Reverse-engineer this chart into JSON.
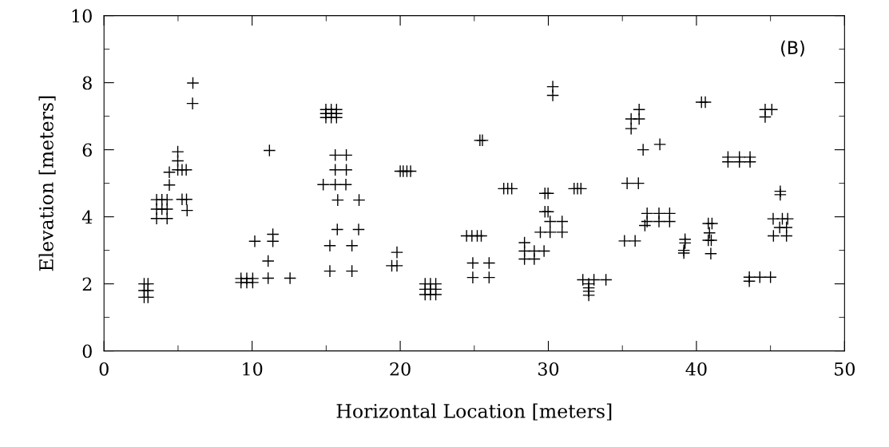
{
  "chart_data": {
    "type": "scatter",
    "xlabel": "Horizontal Location [meters]",
    "ylabel": "Elevation [meters]",
    "annotations": [
      "(B)"
    ],
    "marker": "cross",
    "grid": false,
    "legend": false,
    "xlim": [
      0,
      50
    ],
    "xticks": [
      0,
      10,
      20,
      30,
      40,
      50
    ],
    "ylim": [
      0,
      10
    ],
    "yticks": [
      0,
      2,
      4,
      6,
      8,
      10
    ],
    "series": [
      {
        "color": "#000000",
        "x": [
          2.71,
          2.97,
          2.71,
          2.97,
          2.71,
          2.97,
          3.55,
          3.91,
          4.26,
          3.55,
          3.91,
          4.26,
          3.55,
          4.26,
          4.41,
          4.41,
          4.98,
          4.98,
          4.98,
          5.27,
          5.55,
          5.27,
          5.57,
          5.61,
          5.98,
          6.0,
          9.25,
          9.64,
          10.04,
          9.25,
          9.64,
          10.04,
          10.18,
          11.4,
          11.4,
          11.08,
          11.08,
          11.17,
          12.56,
          14.98,
          15.34,
          15.7,
          14.98,
          15.34,
          15.7,
          14.98,
          15.34,
          15.7,
          15.61,
          16.36,
          15.61,
          16.36,
          14.8,
          15.61,
          16.33,
          15.78,
          17.22,
          15.75,
          17.19,
          15.25,
          16.74,
          15.25,
          16.74,
          19.78,
          19.43,
          19.78,
          20.0,
          20.2,
          20.45,
          20.7,
          21.68,
          22.04,
          22.4,
          21.68,
          22.04,
          22.4,
          21.68,
          22.04,
          22.4,
          24.48,
          24.84,
          25.2,
          25.47,
          24.9,
          26.0,
          24.9,
          26.0,
          25.38,
          25.55,
          26.99,
          27.26,
          27.53,
          28.39,
          28.39,
          29.05,
          29.71,
          28.39,
          29.05,
          29.77,
          29.98,
          29.77,
          29.98,
          30.12,
          30.93,
          29.46,
          30.12,
          30.93,
          30.3,
          30.3,
          31.74,
          31.97,
          32.2,
          32.33,
          33.08,
          33.89,
          32.73,
          32.73,
          32.73,
          32.73,
          35.14,
          35.86,
          35.32,
          36.08,
          35.59,
          35.59,
          36.13,
          36.13,
          36.4,
          37.53,
          36.52,
          36.67,
          37.47,
          38.19,
          36.67,
          37.47,
          38.19,
          39.23,
          39.23,
          39.15,
          39.15,
          40.34,
          40.6,
          40.8,
          41.05,
          40.88,
          40.8,
          41.0,
          40.97,
          42.13,
          42.9,
          43.62,
          42.13,
          42.9,
          43.62,
          43.57,
          44.28,
          45.0,
          43.57,
          44.64,
          45.09,
          44.64,
          45.66,
          45.66,
          45.18,
          45.8,
          46.16,
          45.62,
          46.08,
          45.2,
          46.08
        ],
        "values": [
          2.0,
          2.0,
          1.8,
          1.8,
          1.6,
          1.6,
          4.51,
          4.51,
          4.51,
          4.23,
          4.23,
          4.23,
          3.95,
          3.95,
          5.33,
          4.95,
          5.94,
          5.67,
          5.4,
          5.4,
          5.4,
          4.52,
          4.52,
          4.19,
          7.38,
          7.99,
          2.16,
          2.16,
          2.16,
          2.04,
          2.04,
          2.04,
          3.27,
          3.48,
          3.27,
          2.68,
          2.17,
          5.98,
          2.17,
          7.2,
          7.2,
          7.2,
          7.08,
          7.08,
          7.08,
          6.96,
          6.96,
          6.96,
          5.84,
          5.84,
          5.4,
          5.4,
          4.96,
          4.96,
          4.96,
          4.5,
          4.5,
          3.62,
          3.62,
          3.14,
          3.14,
          2.38,
          2.38,
          2.94,
          2.54,
          2.54,
          5.36,
          5.36,
          5.36,
          5.36,
          2.0,
          2.0,
          2.0,
          1.84,
          1.84,
          1.84,
          1.68,
          1.68,
          1.68,
          3.43,
          3.43,
          3.43,
          3.43,
          2.62,
          2.62,
          2.19,
          2.19,
          6.28,
          6.28,
          4.84,
          4.84,
          4.84,
          3.23,
          2.98,
          2.98,
          2.98,
          2.74,
          2.74,
          4.7,
          4.7,
          4.15,
          4.15,
          3.86,
          3.86,
          3.54,
          3.54,
          3.54,
          7.88,
          7.62,
          4.84,
          4.84,
          4.84,
          2.12,
          2.12,
          2.12,
          2.0,
          1.88,
          1.78,
          1.66,
          3.28,
          3.28,
          5.0,
          5.0,
          6.92,
          6.63,
          7.2,
          6.92,
          6.0,
          6.16,
          3.74,
          4.1,
          4.1,
          4.1,
          3.86,
          3.86,
          3.86,
          3.33,
          3.22,
          3.0,
          2.92,
          7.42,
          7.42,
          3.8,
          3.8,
          3.52,
          3.3,
          3.3,
          2.9,
          5.78,
          5.78,
          5.78,
          5.64,
          5.64,
          5.64,
          2.2,
          2.2,
          2.2,
          2.08,
          7.2,
          7.2,
          6.98,
          4.76,
          4.66,
          3.94,
          3.94,
          3.94,
          3.68,
          3.68,
          3.43,
          3.43
        ]
      }
    ]
  }
}
